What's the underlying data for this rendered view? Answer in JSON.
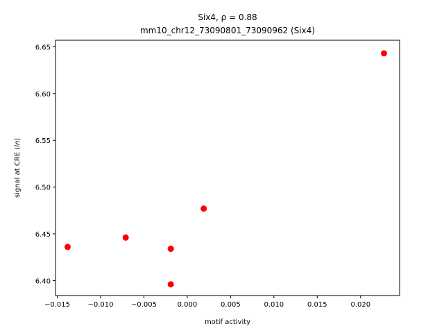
{
  "chart_data": {
    "type": "scatter",
    "title_line1": "Six4, ρ = 0.88",
    "title_line2": "mm10_chr12_73090801_73090962 (Six4)",
    "xlabel": "motif activity",
    "ylabel": "signal at CRE (ln)",
    "xlim": [
      -0.0152,
      0.0245
    ],
    "ylim": [
      6.384,
      6.657
    ],
    "xticks": [
      -0.015,
      -0.01,
      -0.005,
      0.0,
      0.005,
      0.01,
      0.015,
      0.02
    ],
    "xtick_labels": [
      "−0.015",
      "−0.010",
      "−0.005",
      "0.000",
      "0.005",
      "0.010",
      "0.015",
      "0.020"
    ],
    "yticks": [
      6.4,
      6.45,
      6.5,
      6.55,
      6.6,
      6.65
    ],
    "ytick_labels": [
      "6.40",
      "6.45",
      "6.50",
      "6.55",
      "6.60",
      "6.65"
    ],
    "grid": false,
    "marker_color": "#ff0000",
    "points": [
      {
        "x": -0.0138,
        "y": 6.436
      },
      {
        "x": -0.0071,
        "y": 6.446
      },
      {
        "x": -0.0019,
        "y": 6.434
      },
      {
        "x": -0.0019,
        "y": 6.396
      },
      {
        "x": 0.0019,
        "y": 6.477
      },
      {
        "x": 0.0227,
        "y": 6.643
      }
    ]
  }
}
